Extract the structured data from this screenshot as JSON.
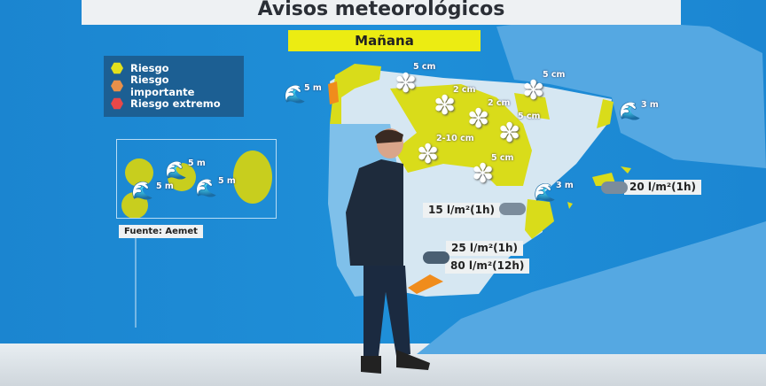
{
  "title": "Avisos meteorológicos",
  "day": "Mañana",
  "legend": [
    {
      "label": "Riesgo",
      "color": "#e3e11c"
    },
    {
      "label": "Riesgo importante",
      "color": "#e8904a"
    },
    {
      "label": "Riesgo extremo",
      "color": "#e84848"
    }
  ],
  "source": "Fuente: Aemet",
  "snow": [
    "5 cm",
    "2 cm",
    "2 cm",
    "5 cm",
    "2-10 cm",
    "5 cm",
    "5 cm"
  ],
  "waves": [
    "5 m",
    "3 m",
    "3 m",
    "5 m",
    "5 m",
    "5 m"
  ],
  "rain": [
    "15 l/m²(1h)",
    "20 l/m²(1h)",
    "25 l/m²(1h)",
    "80 l/m²(12h)"
  ],
  "colors": {
    "sea": "#1d8ad6",
    "land": "#d6e7f2",
    "warning_yellow": "#d9dc1a",
    "warning_orange": "#f08c1c"
  }
}
